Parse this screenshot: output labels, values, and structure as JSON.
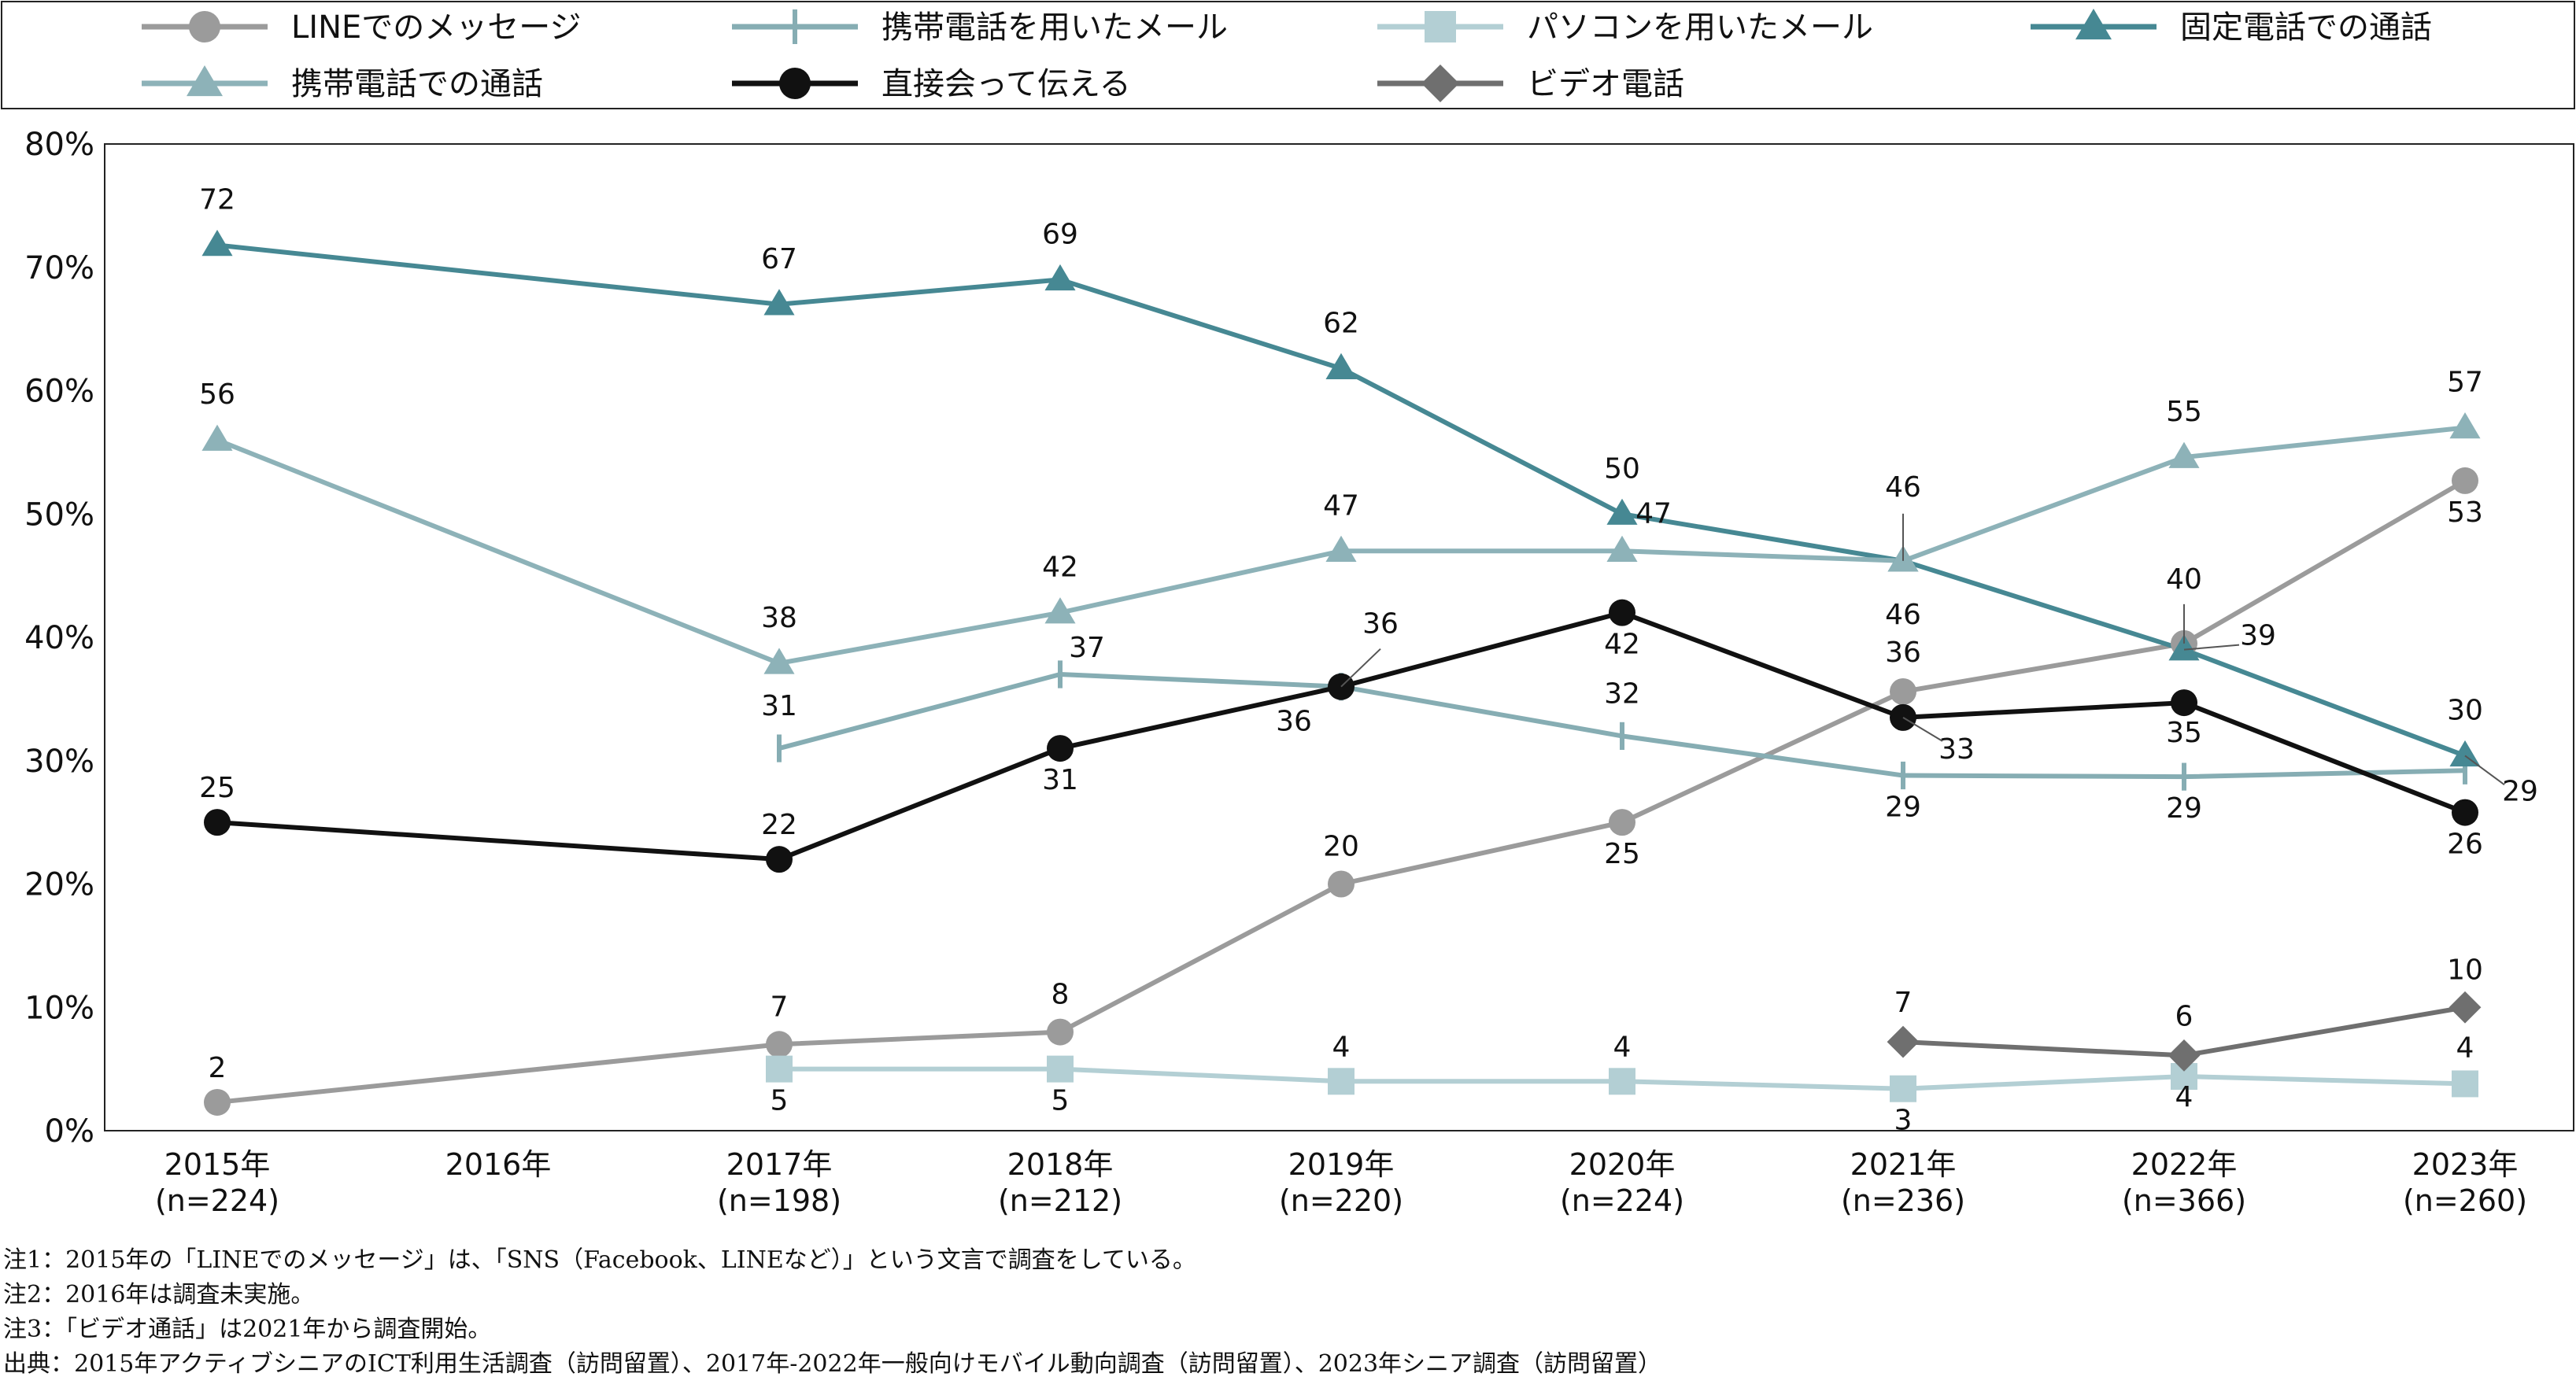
{
  "chart_data": {
    "type": "line",
    "categories": [
      "2015年",
      "2016年",
      "2017年",
      "2018年",
      "2019年",
      "2020年",
      "2021年",
      "2022年",
      "2023年"
    ],
    "category_sub": [
      "(n=224)",
      "",
      "(n=198)",
      "(n=212)",
      "(n=220)",
      "(n=224)",
      "(n=236)",
      "(n=366)",
      "(n=260)"
    ],
    "y_ticks": [
      "0%",
      "10%",
      "20%",
      "30%",
      "40%",
      "50%",
      "60%",
      "70%",
      "80%"
    ],
    "ylim": [
      0,
      80
    ],
    "grid": false,
    "legend_position": "top",
    "series": [
      {
        "name": "LINEでのメッセージ",
        "color": "#9b9b9b",
        "marker": "circle",
        "values": [
          2.3,
          null,
          7,
          8,
          20,
          25,
          35.6,
          39.5,
          52.7
        ],
        "labels": [
          "2",
          "",
          "7",
          "8",
          "20",
          "25",
          "36",
          "40",
          "53"
        ]
      },
      {
        "name": "携帯電話を用いたメール",
        "color": "#86adb3",
        "marker": "plus",
        "values": [
          null,
          null,
          31,
          37,
          36,
          32,
          28.8,
          28.7,
          29.2
        ],
        "labels": [
          "",
          "",
          "31",
          "37",
          "36",
          "32",
          "29",
          "29",
          "29"
        ]
      },
      {
        "name": "パソコンを用いたメール",
        "color": "#b3cfd4",
        "marker": "square",
        "values": [
          null,
          null,
          5,
          5,
          4,
          4,
          3.4,
          4.4,
          3.8
        ],
        "labels": [
          "",
          "",
          "5",
          "5",
          "4",
          "4",
          "3",
          "4",
          "4"
        ]
      },
      {
        "name": "固定電話での通話",
        "color": "#468893",
        "marker": "triangle",
        "values": [
          71.8,
          null,
          67,
          69,
          61.8,
          50,
          46.2,
          39,
          30.4
        ],
        "labels": [
          "72",
          "",
          "67",
          "69",
          "62",
          "50",
          "46",
          "39",
          "30"
        ]
      },
      {
        "name": "携帯電話での通話",
        "color": "#8db2b8",
        "marker": "triangle",
        "values": [
          56,
          null,
          37.9,
          42,
          47,
          47,
          46.2,
          54.6,
          57
        ],
        "labels": [
          "56",
          "",
          "38",
          "42",
          "47",
          "47",
          "46",
          "55",
          "57"
        ]
      },
      {
        "name": "直接会って伝える",
        "color": "#111111",
        "marker": "circle",
        "values": [
          25,
          null,
          22,
          31,
          36,
          42,
          33.5,
          34.7,
          25.8
        ],
        "labels": [
          "25",
          "",
          "22",
          "31",
          "36",
          "42",
          "33",
          "35",
          "26"
        ]
      },
      {
        "name": "ビデオ電話",
        "color": "#6f6f6f",
        "marker": "diamond",
        "values": [
          null,
          null,
          null,
          null,
          null,
          null,
          7.2,
          6.1,
          10
        ],
        "labels": [
          "",
          "",
          "",
          "",
          "",
          "",
          "7",
          "6",
          "10"
        ]
      }
    ]
  },
  "notes": [
    "注1：2015年の「LINEでのメッセージ」は、「SNS（Facebook、LINEなど）」という文言で調査をしている。",
    "注2：2016年は調査未実施。",
    "注3：「ビデオ通話」は2021年から調査開始。",
    "出典：2015年アクティブシニアのICT利用生活調査（訪問留置）、2017年-2022年一般向けモバイル動向調査（訪問留置）、2023年シニア調査（訪問留置）"
  ]
}
